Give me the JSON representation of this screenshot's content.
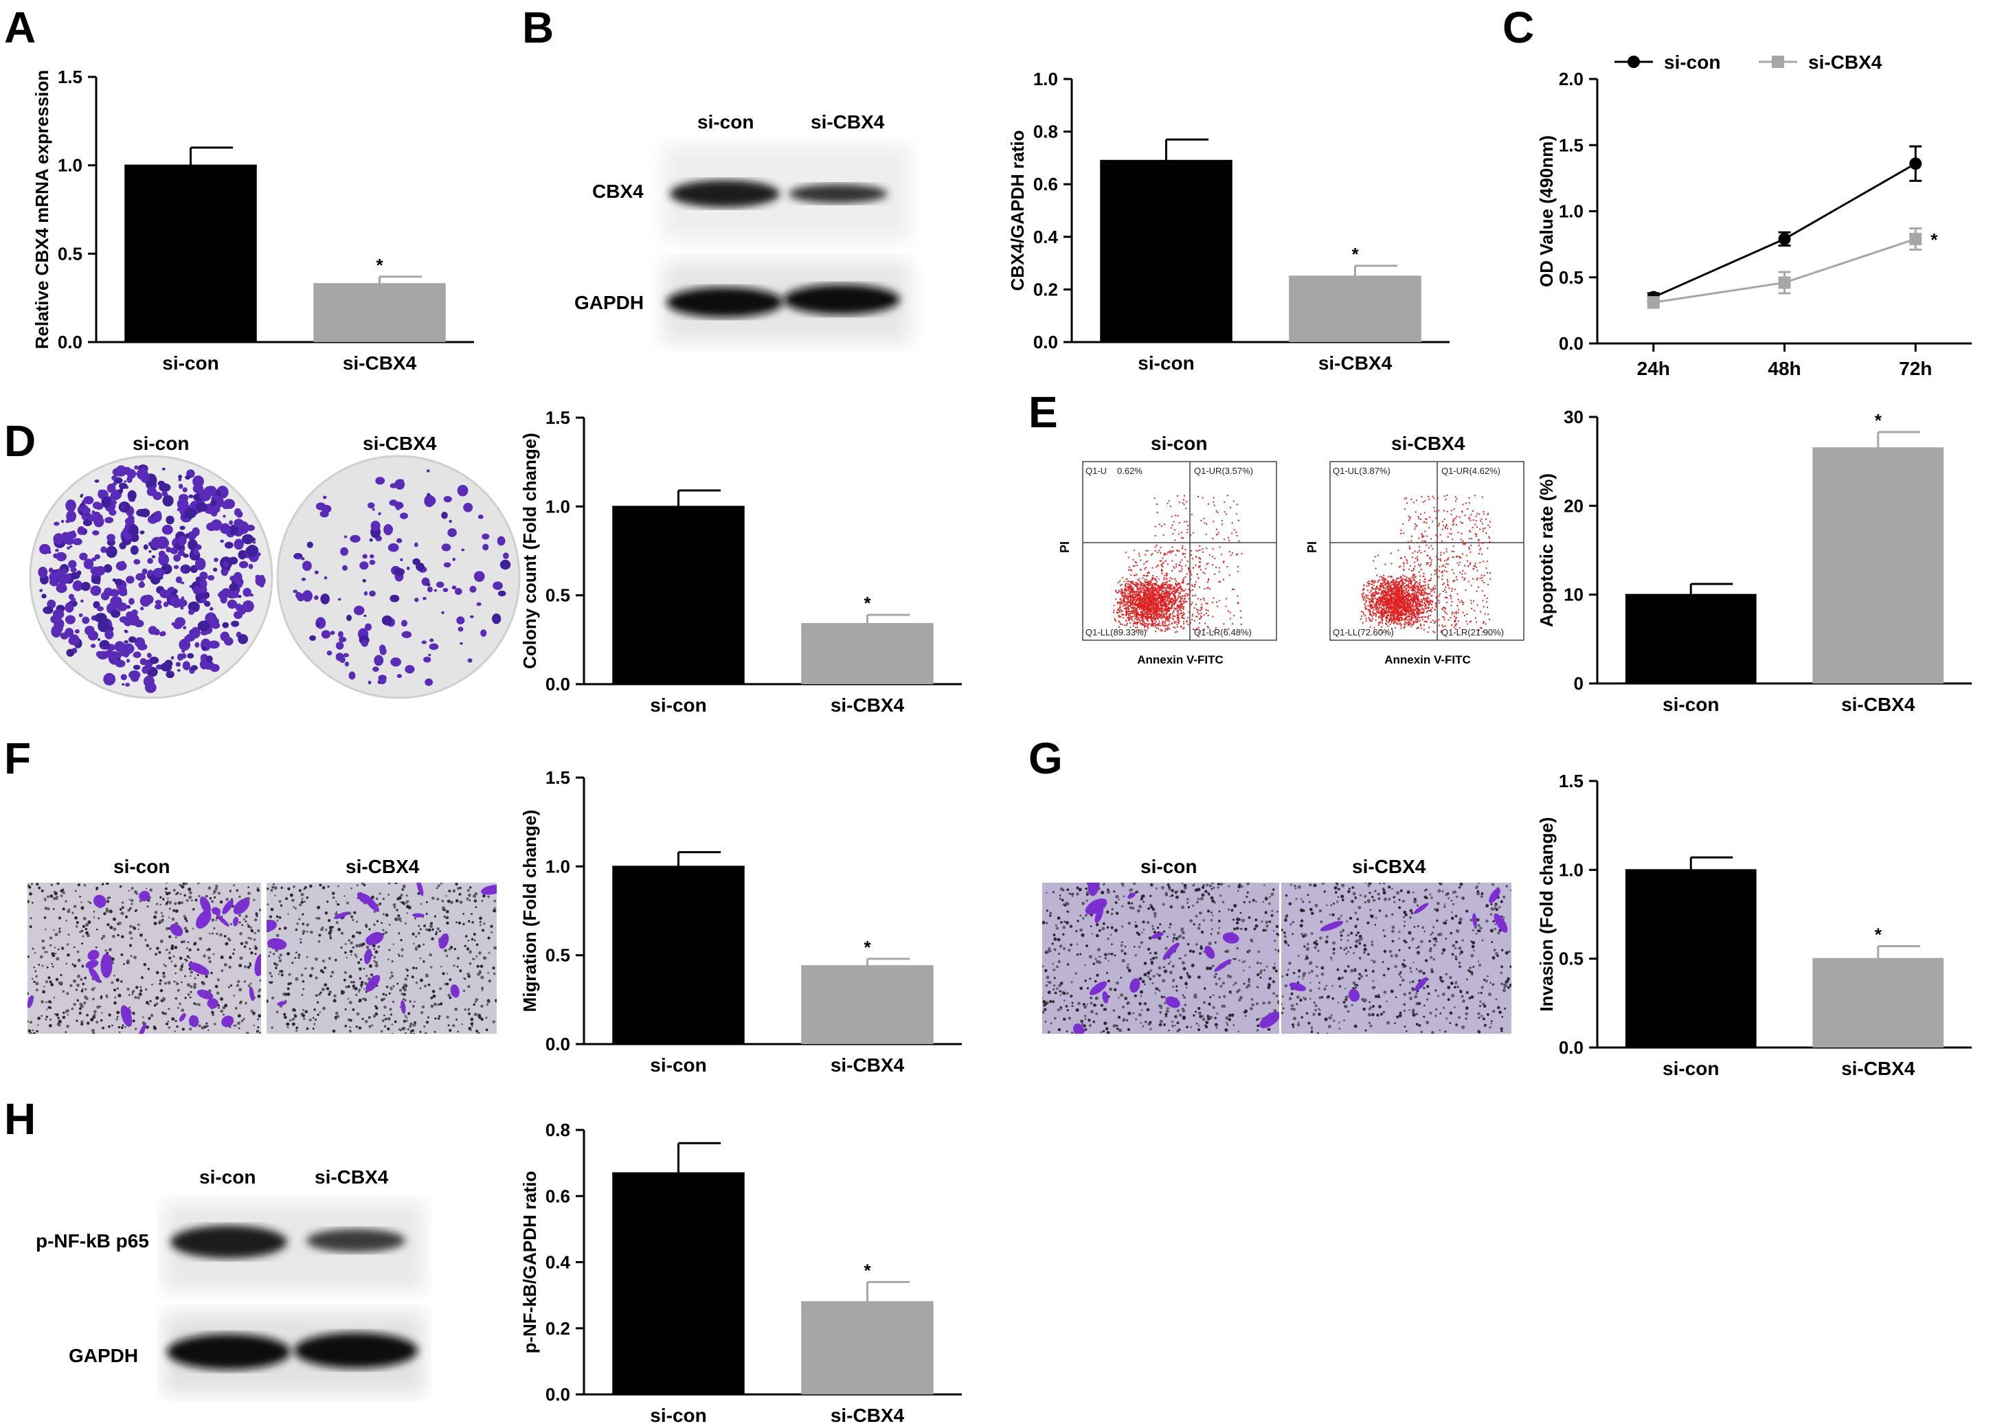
{
  "panels": {
    "A": "A",
    "B": "B",
    "C": "C",
    "D": "D",
    "E": "E",
    "F": "F",
    "G": "G",
    "H": "H"
  },
  "blot_B": {
    "lane1": "si-con",
    "lane2": "si-CBX4",
    "row1": "CBX4",
    "row2": "GAPDH"
  },
  "blot_H": {
    "lane1": "si-con",
    "lane2": "si-CBX4",
    "row1": "p-NF-kB p65",
    "row2": "GAPDH"
  },
  "colony_D": {
    "left": "si-con",
    "right": "si-CBX4"
  },
  "flow_E": {
    "left_title": "si-con",
    "right_title": "si-CBX4",
    "ylabel": "PI",
    "xlabel": "Annexin V-FITC",
    "left_quadrants": {
      "ul": "Q1-U",
      "ul_val": "0.62%",
      "ur": "Q1-UR(3.57%)",
      "ll": "Q1-LL(89.33%)",
      "lr": "Q1-LR(6.48%)"
    },
    "right_quadrants": {
      "ul": "Q1-UL(3.87%)",
      "ur": "Q1-UR(4.62%)",
      "ll": "Q1-LL(72.60%)",
      "lr": "Q1-LR(21.90%)"
    }
  },
  "migration_F": {
    "left": "si-con",
    "right": "si-CBX4"
  },
  "invasion_G": {
    "left": "si-con",
    "right": "si-CBX4"
  },
  "colors": {
    "si_con": "#000000",
    "si_cbx4": "#a6a6a6",
    "dots": "#e02020",
    "crystal_violet": "#5a2ab8"
  },
  "chart_data": [
    {
      "id": "A",
      "type": "bar",
      "categories": [
        "si-con",
        "si-CBX4"
      ],
      "values": [
        1.0,
        0.33
      ],
      "errors": [
        0.1,
        0.04
      ],
      "ylabel": "Relative CBX4 mRNA expression",
      "ylim": [
        0,
        1.5
      ],
      "yticks": [
        0.0,
        0.5,
        1.0,
        1.5
      ],
      "tick_labels": [
        "0.0",
        "0.5",
        "1.0",
        "1.5"
      ],
      "significance": [
        "",
        "*"
      ]
    },
    {
      "id": "B",
      "type": "bar",
      "categories": [
        "si-con",
        "si-CBX4"
      ],
      "values": [
        0.69,
        0.25
      ],
      "errors": [
        0.08,
        0.04
      ],
      "ylabel": "CBX4/GAPDH ratio",
      "ylim": [
        0,
        1.0
      ],
      "yticks": [
        0.0,
        0.2,
        0.4,
        0.6,
        0.8,
        1.0
      ],
      "tick_labels": [
        "0.0",
        "0.2",
        "0.4",
        "0.6",
        "0.8",
        "1.0"
      ],
      "significance": [
        "",
        "*"
      ]
    },
    {
      "id": "C",
      "type": "line",
      "x": [
        "24h",
        "48h",
        "72h"
      ],
      "series": [
        {
          "name": "si-con",
          "values": [
            0.35,
            0.79,
            1.36
          ],
          "errors": [
            0.03,
            0.05,
            0.13
          ]
        },
        {
          "name": "si-CBX4",
          "values": [
            0.31,
            0.46,
            0.79
          ],
          "errors": [
            0.04,
            0.08,
            0.08
          ]
        }
      ],
      "ylabel": "OD Value (490nm)",
      "ylim": [
        0,
        2.0
      ],
      "yticks": [
        0.0,
        0.5,
        1.0,
        1.5,
        2.0
      ],
      "tick_labels": [
        "0.0",
        "0.5",
        "1.0",
        "1.5",
        "2.0"
      ],
      "legend": "top",
      "significance": "*"
    },
    {
      "id": "D",
      "type": "bar",
      "categories": [
        "si-con",
        "si-CBX4"
      ],
      "values": [
        1.0,
        0.34
      ],
      "errors": [
        0.09,
        0.05
      ],
      "ylabel": "Colony count (Fold change)",
      "ylim": [
        0,
        1.5
      ],
      "yticks": [
        0.0,
        0.5,
        1.0,
        1.5
      ],
      "tick_labels": [
        "0.0",
        "0.5",
        "1.0",
        "1.5"
      ],
      "significance": [
        "",
        "*"
      ]
    },
    {
      "id": "E",
      "type": "bar",
      "categories": [
        "si-con",
        "si-CBX4"
      ],
      "values": [
        10.0,
        26.5
      ],
      "errors": [
        1.2,
        1.8
      ],
      "ylabel": "Apoptotic rate (%)",
      "ylim": [
        0,
        30
      ],
      "yticks": [
        0,
        10,
        20,
        30
      ],
      "tick_labels": [
        "0",
        "10",
        "20",
        "30"
      ],
      "significance": [
        "",
        "*"
      ]
    },
    {
      "id": "F",
      "type": "bar",
      "categories": [
        "si-con",
        "si-CBX4"
      ],
      "values": [
        1.0,
        0.44
      ],
      "errors": [
        0.08,
        0.04
      ],
      "ylabel": "Migration (Fold change)",
      "ylim": [
        0,
        1.5
      ],
      "yticks": [
        0.0,
        0.5,
        1.0,
        1.5
      ],
      "tick_labels": [
        "0.0",
        "0.5",
        "1.0",
        "1.5"
      ],
      "significance": [
        "",
        "*"
      ]
    },
    {
      "id": "G",
      "type": "bar",
      "categories": [
        "si-con",
        "si-CBX4"
      ],
      "values": [
        1.0,
        0.5
      ],
      "errors": [
        0.07,
        0.07
      ],
      "ylabel": "Invasion (Fold change)",
      "ylim": [
        0,
        1.5
      ],
      "yticks": [
        0.0,
        0.5,
        1.0,
        1.5
      ],
      "tick_labels": [
        "0.0",
        "0.5",
        "1.0",
        "1.5"
      ],
      "significance": [
        "",
        "*"
      ]
    },
    {
      "id": "H",
      "type": "bar",
      "categories": [
        "si-con",
        "si-CBX4"
      ],
      "values": [
        0.67,
        0.28
      ],
      "errors": [
        0.09,
        0.06
      ],
      "ylabel": "p-NF-kB/GAPDH ratio",
      "ylim": [
        0,
        0.8
      ],
      "yticks": [
        0.0,
        0.2,
        0.4,
        0.6,
        0.8
      ],
      "tick_labels": [
        "0.0",
        "0.2",
        "0.4",
        "0.6",
        "0.8"
      ],
      "significance": [
        "",
        "*"
      ]
    }
  ]
}
